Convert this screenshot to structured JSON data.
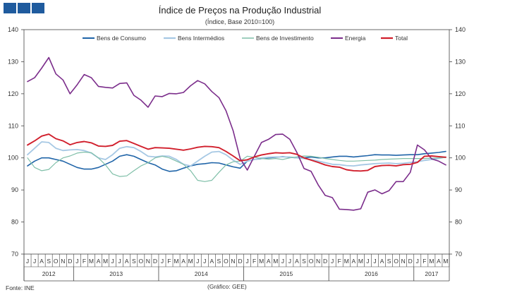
{
  "header": {
    "logo_blocks": 3,
    "logo_color": "#1f5b9e"
  },
  "chart_data": {
    "type": "line",
    "title": "Índice de Preços na Produção Industrial",
    "subtitle": "(Índice, Base 2010=100)",
    "ylim": [
      70,
      140
    ],
    "yticks": [
      70,
      80,
      90,
      100,
      110,
      120,
      130,
      140
    ],
    "x": [
      "J",
      "J",
      "A",
      "S",
      "O",
      "N",
      "D",
      "J",
      "F",
      "M",
      "A",
      "M",
      "J",
      "J",
      "A",
      "S",
      "O",
      "N",
      "D",
      "J",
      "F",
      "M",
      "A",
      "M",
      "J",
      "J",
      "A",
      "S",
      "O",
      "N",
      "D",
      "J",
      "F",
      "M",
      "A",
      "M",
      "J",
      "J",
      "A",
      "S",
      "O",
      "N",
      "D",
      "J",
      "F",
      "M",
      "A",
      "M",
      "J",
      "J",
      "A",
      "S",
      "O",
      "N",
      "D",
      "J",
      "F",
      "M",
      "A",
      "M"
    ],
    "years": [
      {
        "label": "2012",
        "start": 0,
        "end": 6
      },
      {
        "label": "2013",
        "start": 7,
        "end": 18
      },
      {
        "label": "2014",
        "start": 19,
        "end": 30
      },
      {
        "label": "2015",
        "start": 31,
        "end": 42
      },
      {
        "label": "2016",
        "start": 43,
        "end": 54
      },
      {
        "label": "2017",
        "start": 55,
        "end": 59
      }
    ],
    "series": [
      {
        "name": "Bens de Consumo",
        "color": "#1f64a8",
        "width": 1.6,
        "values": [
          97.5,
          99,
          100,
          100,
          99.5,
          99,
          98,
          97,
          96.5,
          96.5,
          97,
          98,
          99,
          100.5,
          101,
          100.5,
          99.5,
          98.5,
          97.8,
          96.5,
          95.8,
          96,
          96.8,
          97.5,
          98,
          98.2,
          98.5,
          98.4,
          97.8,
          97.2,
          96.8,
          99,
          99.5,
          99.8,
          100,
          100.2,
          100.4,
          100.2,
          100,
          100,
          100.3,
          100,
          100,
          100.3,
          100.5,
          100.5,
          100.3,
          100.5,
          100.7,
          101,
          100.9,
          100.9,
          100.8,
          100.9,
          101,
          101,
          101.3,
          101.5,
          101.7,
          102
        ]
      },
      {
        "name": "Bens Intermédios",
        "color": "#a6c8e4",
        "width": 1.8,
        "values": [
          101,
          103,
          105,
          104.8,
          103,
          102.3,
          102.5,
          102.6,
          102.3,
          101.5,
          100,
          99.5,
          101,
          103,
          103.5,
          103.2,
          102,
          100.5,
          100.3,
          100.6,
          100.5,
          99.5,
          98,
          97.5,
          99,
          100.5,
          101.8,
          102,
          101,
          99.3,
          98,
          99,
          99.5,
          100,
          100.2,
          100.3,
          100.3,
          100.3,
          100,
          99.8,
          99.5,
          99,
          98.5,
          98,
          97.9,
          97.6,
          97.5,
          97.8,
          98,
          98.2,
          98.3,
          98.4,
          98.2,
          98.3,
          98.6,
          98.8,
          99.2,
          99.5,
          99.8,
          100.3
        ]
      },
      {
        "name": "Bens de Investimento",
        "color": "#7fbfa8",
        "width": 1.2,
        "values": [
          100,
          97,
          96,
          96.4,
          98.5,
          100,
          100.6,
          101.5,
          101.8,
          101.6,
          100,
          97.8,
          95,
          94.2,
          94.4,
          96,
          97.5,
          98.5,
          100,
          100.5,
          100,
          99,
          98,
          96,
          93,
          92.6,
          93,
          95.5,
          97.8,
          98.8,
          99,
          100.5,
          100.2,
          99.8,
          99.6,
          99.8,
          99.5,
          100,
          100.3,
          100.6,
          100.5,
          100.2,
          99.8,
          99.5,
          99.2,
          99,
          99,
          99.1,
          99.2,
          99.3,
          99.5,
          99.6,
          99.7,
          99.8,
          99.8,
          99.8,
          99.8,
          99.9,
          100,
          100.1
        ]
      },
      {
        "name": "Energia",
        "color": "#7b2d8b",
        "width": 1.6,
        "values": [
          123.8,
          125,
          128,
          131.3,
          126.2,
          124.3,
          120,
          122.8,
          126,
          125,
          122.3,
          122,
          121.8,
          123.2,
          123.4,
          119.5,
          118,
          115.8,
          119.3,
          119.1,
          120.1,
          120,
          120.4,
          122.5,
          124.1,
          123.1,
          120.7,
          118.8,
          114.7,
          108.5,
          99.8,
          96.2,
          100.5,
          104.8,
          105.8,
          107.3,
          107.4,
          105.8,
          101.7,
          96.7,
          95.8,
          91.6,
          88.3,
          87.6,
          84,
          83.9,
          83.7,
          84.1,
          89.3,
          90,
          88.8,
          89.8,
          92.6,
          92.6,
          95.5,
          104,
          102.5,
          99.7,
          99,
          97.8
        ]
      },
      {
        "name": "Total",
        "color": "#d11f2c",
        "width": 1.9,
        "values": [
          104,
          105.3,
          106.8,
          107.4,
          106,
          105.3,
          104.1,
          104.8,
          105.1,
          104.7,
          103.7,
          103.6,
          103.9,
          105.2,
          105.4,
          104.5,
          103.6,
          102.7,
          103.2,
          103.1,
          103,
          102.7,
          102.4,
          102.8,
          103.3,
          103.6,
          103.5,
          103.2,
          102,
          100.6,
          99.1,
          99.4,
          100.3,
          100.9,
          101.3,
          101.6,
          101.5,
          101.6,
          101.1,
          100,
          99.3,
          98.6,
          97.8,
          97.3,
          97.1,
          96.3,
          96,
          95.9,
          96.1,
          97.3,
          97.6,
          97.7,
          97.5,
          97.9,
          98,
          98.6,
          100.5,
          100.6,
          100.4,
          100.2
        ]
      }
    ]
  },
  "footer": {
    "source": "Fonte: INE",
    "credit": "(Gráfico: GEE)"
  }
}
